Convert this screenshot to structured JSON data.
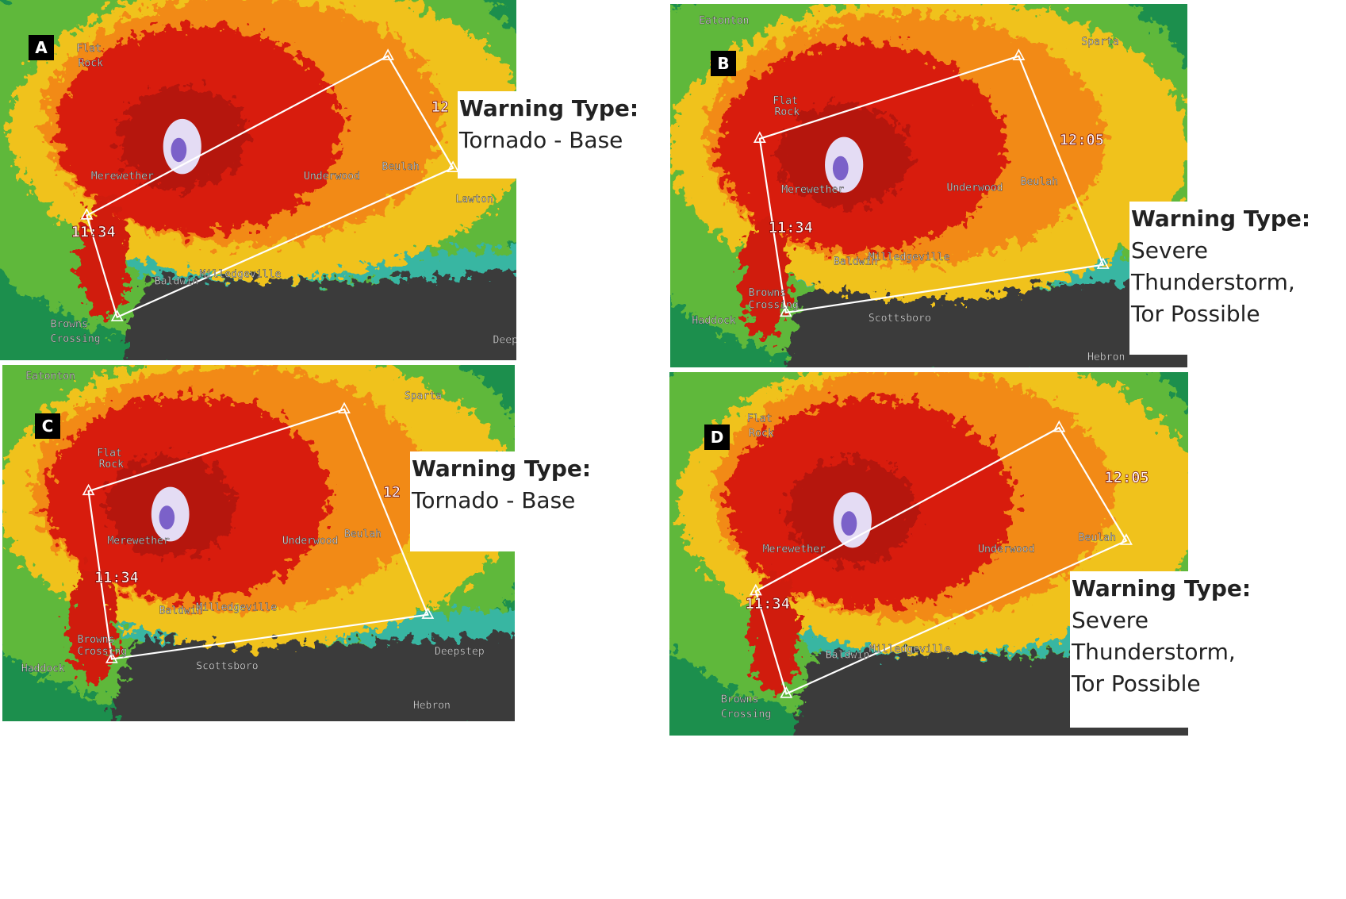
{
  "panels": [
    {
      "letter": "A",
      "warning_label": "Warning Type:",
      "warning_type": [
        "Tornado - Base"
      ],
      "map_labels": [
        "Flat",
        "Rock",
        "Merewether",
        "Underwood",
        "Beulah",
        "Milledgeville",
        "Baldwin",
        "Browns",
        "Crossing",
        "11:34",
        "12",
        "Lawton",
        "Deep"
      ]
    },
    {
      "letter": "B",
      "warning_label": "Warning Type:",
      "warning_type": [
        "Severe",
        "Thunderstorm,",
        "Tor Possible"
      ],
      "map_labels": [
        "Eatonton",
        "Sparta",
        "Flat",
        "Rock",
        "Merewether",
        "Underwood",
        "Beulah",
        "Milledgeville",
        "Baldwin",
        "Browns",
        "Crossing",
        "Haddock",
        "Scottsboro",
        "Hebron",
        "11:34",
        "12:05"
      ]
    },
    {
      "letter": "C",
      "warning_label": "Warning Type:",
      "warning_type": [
        "Tornado - Base"
      ],
      "map_labels": [
        "Eatonton",
        "Sparta",
        "Flat",
        "Rock",
        "Merewether",
        "Underwood",
        "Beulah",
        "Milledgeville",
        "Baldwin",
        "Browns",
        "Crossing",
        "Haddock",
        "Scottsboro",
        "Deepstep",
        "Hebron",
        "11:34",
        "12"
      ]
    },
    {
      "letter": "D",
      "warning_label": "Warning Type:",
      "warning_type": [
        "Severe",
        "Thunderstorm,",
        "Tor Possible"
      ],
      "map_labels": [
        "Flat",
        "Rock",
        "Merewether",
        "Underwood",
        "Beulah",
        "Milledgeville",
        "Baldwin",
        "Browns",
        "Crossing",
        "11:34",
        "12:05"
      ]
    }
  ]
}
